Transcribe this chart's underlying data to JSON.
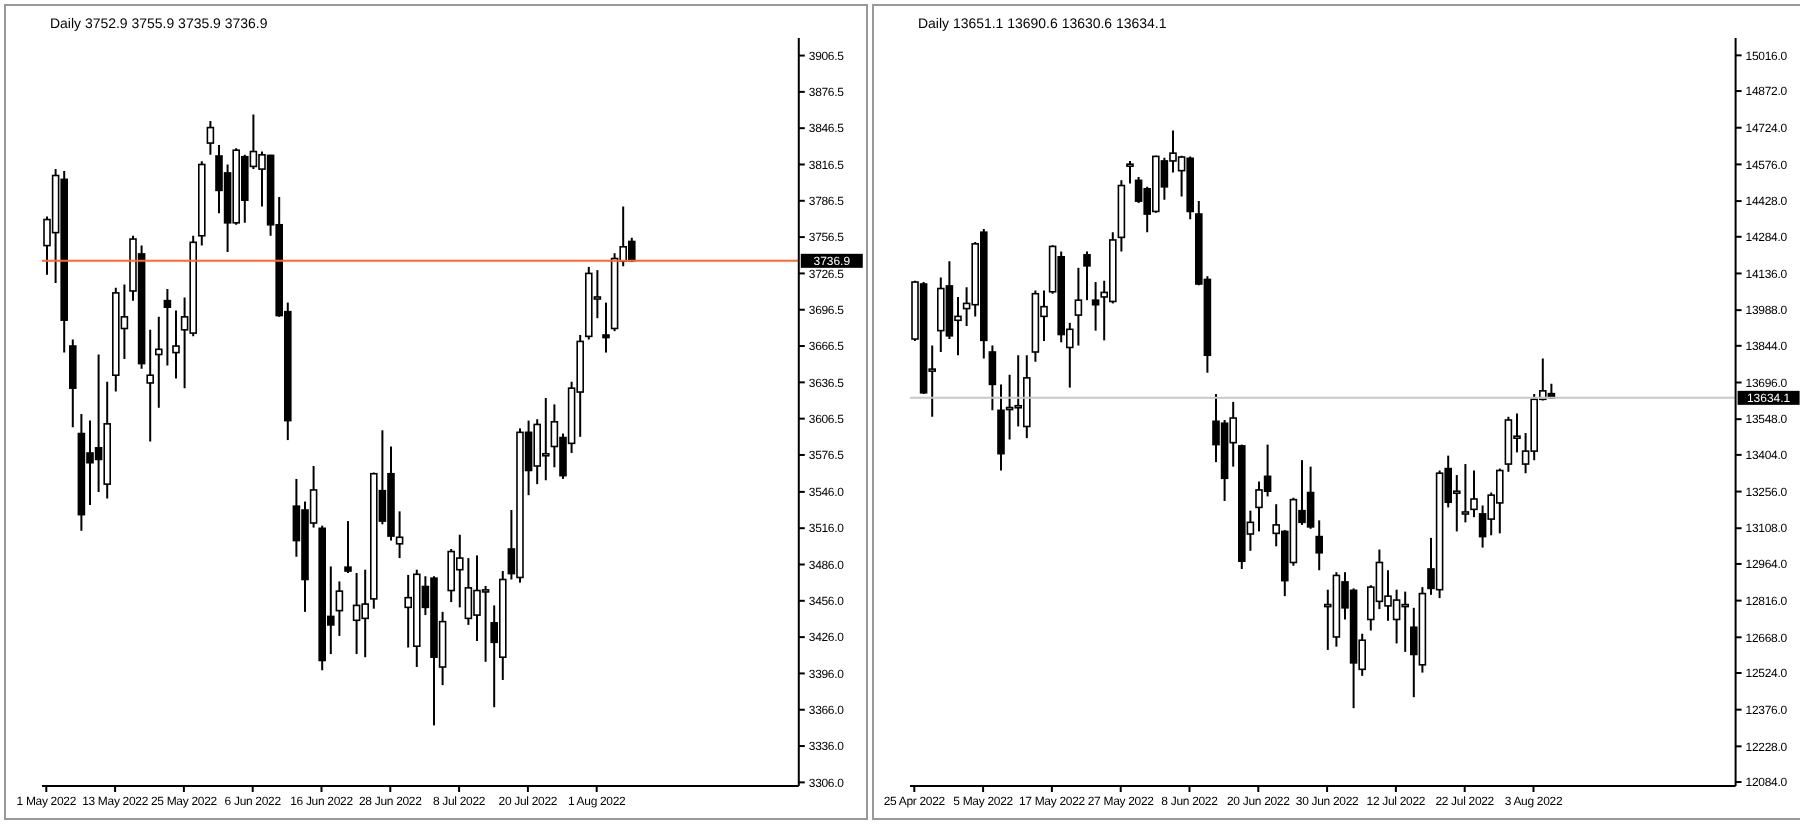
{
  "chart_data": [
    {
      "type": "candlestick",
      "title": "Daily 3752.9 3755.9 3735.9 3736.9",
      "categories": [
        "1 May 2022",
        null,
        null,
        null,
        null,
        null,
        null,
        null,
        "13 May 2022",
        null,
        null,
        null,
        null,
        null,
        null,
        null,
        "25 May 2022",
        null,
        null,
        null,
        null,
        null,
        null,
        null,
        "6 Jun 2022",
        null,
        null,
        null,
        null,
        null,
        null,
        null,
        "16 Jun 2022",
        null,
        null,
        null,
        null,
        null,
        null,
        null,
        "28 Jun 2022",
        null,
        null,
        null,
        null,
        null,
        null,
        null,
        "8 Jul 2022",
        null,
        null,
        null,
        null,
        null,
        null,
        null,
        "20 Jul 2022",
        null,
        null,
        null,
        null,
        null,
        null,
        null,
        "1 Aug 2022",
        null,
        null,
        null,
        null,
        null,
        null,
        null,
        null,
        null,
        null,
        null,
        null,
        null,
        null,
        null,
        null,
        null,
        null,
        null,
        null,
        null,
        null,
        null
      ],
      "color": "#000000",
      "ohlc": [
        [
          3749.5,
          3773.6,
          3725.4,
          3771.0
        ],
        [
          3760.2,
          3812.7,
          3718.5,
          3807.4
        ],
        [
          3804.2,
          3811.1,
          3661.1,
          3687.9
        ],
        [
          3666.5,
          3671.9,
          3599.5,
          3631.7
        ],
        [
          3594.2,
          3610.3,
          3513.8,
          3527.2
        ],
        [
          3578.1,
          3604.9,
          3535.2,
          3570.1
        ],
        [
          3582.4,
          3659.5,
          3546.0,
          3572.8
        ],
        [
          3552.4,
          3637.0,
          3540.6,
          3602.2
        ],
        [
          3642.4,
          3714.7,
          3629.0,
          3710.4
        ],
        [
          3681.0,
          3717.4,
          3655.8,
          3690.6
        ],
        [
          3712.0,
          3757.6,
          3704.0,
          3754.9
        ],
        [
          3742.6,
          3749.5,
          3647.8,
          3652.0
        ],
        [
          3636.0,
          3680.0,
          3587.7,
          3642.4
        ],
        [
          3659.5,
          3690.6,
          3615.6,
          3663.8
        ],
        [
          3704.0,
          3713.6,
          3650.4,
          3698.6
        ],
        [
          3661.1,
          3695.9,
          3639.7,
          3666.5
        ],
        [
          3679.9,
          3706.7,
          3631.7,
          3690.6
        ],
        [
          3677.2,
          3757.6,
          3674.5,
          3752.2
        ],
        [
          3757.6,
          3819.2,
          3749.5,
          3816.5
        ],
        [
          3834.2,
          3852.4,
          3824.5,
          3847.0
        ],
        [
          3823.5,
          3832.6,
          3776.3,
          3795.1
        ],
        [
          3809.5,
          3816.5,
          3744.2,
          3768.3
        ],
        [
          3768.3,
          3829.9,
          3766.7,
          3828.3
        ],
        [
          3822.9,
          3824.5,
          3768.3,
          3787.0
        ],
        [
          3814.9,
          3857.7,
          3812.7,
          3827.2
        ],
        [
          3812.7,
          3827.2,
          3781.7,
          3824.5
        ],
        [
          3824.0,
          3824.5,
          3757.6,
          3766.7
        ],
        [
          3766.7,
          3789.7,
          3690.6,
          3691.7
        ],
        [
          3694.9,
          3702.4,
          3588.8,
          3604.9
        ],
        [
          3534.2,
          3556.7,
          3492.4,
          3505.8
        ],
        [
          3531.0,
          3538.0,
          3446.9,
          3473.6
        ],
        [
          3520.3,
          3567.4,
          3516.5,
          3547.6
        ],
        [
          3515.9,
          3518.1,
          3398.6,
          3406.7
        ],
        [
          3443.1,
          3484.4,
          3412.0,
          3436.1
        ],
        [
          3447.9,
          3472.0,
          3427.0,
          3464.0
        ],
        [
          3483.8,
          3521.9,
          3479.0,
          3480.6
        ],
        [
          3439.9,
          3479.0,
          3412.0,
          3452.2
        ],
        [
          3441.5,
          3481.7,
          3409.4,
          3453.3
        ],
        [
          3457.6,
          3562.0,
          3449.5,
          3561.0
        ],
        [
          3547.0,
          3596.9,
          3519.2,
          3521.9
        ],
        [
          3561.0,
          3583.5,
          3505.8,
          3509.5
        ],
        [
          3503.1,
          3529.9,
          3491.3,
          3508.5
        ],
        [
          3450.6,
          3477.4,
          3417.4,
          3458.6
        ],
        [
          3418.5,
          3481.7,
          3401.3,
          3477.9
        ],
        [
          3467.8,
          3476.3,
          3444.2,
          3450.6
        ],
        [
          3474.7,
          3476.3,
          3353.1,
          3409.4
        ],
        [
          3401.3,
          3446.9,
          3386.3,
          3438.8
        ],
        [
          3464.5,
          3498.8,
          3454.9,
          3496.7
        ],
        [
          3481.7,
          3510.6,
          3450.6,
          3491.3
        ],
        [
          3441.5,
          3491.3,
          3436.1,
          3466.7
        ],
        [
          3444.2,
          3493.5,
          3422.8,
          3464.5
        ],
        [
          3464.5,
          3468.3,
          3405.6,
          3465.0
        ],
        [
          3437.8,
          3452.2,
          3368.1,
          3421.7
        ],
        [
          3409.4,
          3480.6,
          3390.6,
          3473.6
        ],
        [
          3498.8,
          3531.0,
          3473.6,
          3478.5
        ],
        [
          3475.3,
          3598.5,
          3471.0,
          3595.2
        ],
        [
          3595.2,
          3604.9,
          3543.3,
          3563.7
        ],
        [
          3567.4,
          3606.0,
          3552.4,
          3601.7
        ],
        [
          3577.0,
          3623.6,
          3555.6,
          3577.5
        ],
        [
          3583.5,
          3618.3,
          3566.3,
          3603.9
        ],
        [
          3590.9,
          3594.2,
          3556.7,
          3559.4
        ],
        [
          3586.1,
          3637.0,
          3578.1,
          3631.7
        ],
        [
          3628.5,
          3675.6,
          3591.5,
          3670.3
        ],
        [
          3674.5,
          3731.9,
          3671.9,
          3726.5
        ],
        [
          3706.7,
          3729.2,
          3689.5,
          3707.0
        ],
        [
          3675.6,
          3702.4,
          3661.1,
          3673.5
        ],
        [
          3681.0,
          3743.1,
          3678.8,
          3738.8
        ],
        [
          3736.7,
          3781.7,
          3732.4,
          3748.5
        ],
        [
          3752.9,
          3755.9,
          3735.9,
          3736.9
        ],
        null,
        null,
        null,
        null,
        null,
        null,
        null,
        null,
        null,
        null,
        null,
        null,
        null,
        null,
        null,
        null,
        null,
        null,
        null
      ],
      "ylim": [
        3303,
        3921
      ],
      "yticks": [
        3906.5,
        3876.5,
        3846.5,
        3816.5,
        3786.5,
        3756.5,
        3726.5,
        3696.5,
        3666.5,
        3636.5,
        3606.5,
        3576.5,
        {
          "value": 3546,
          "label": "3546.0"
        },
        {
          "value": 3516,
          "label": "3516.0"
        },
        {
          "value": 3486,
          "label": "3486.0"
        },
        {
          "value": 3456,
          "label": "3456.0"
        },
        {
          "value": 3426,
          "label": "3426.0"
        },
        {
          "value": 3396,
          "label": "3396.0"
        },
        {
          "value": 3366,
          "label": "3366.0"
        },
        {
          "value": 3336,
          "label": "3336.0"
        },
        {
          "value": 3306,
          "label": "3306.0"
        }
      ],
      "ref_lines": [
        {
          "axis": "y",
          "value": 3736.9,
          "label": "3736.9",
          "color": "#ff6a2a",
          "line_style": "solid"
        }
      ]
    },
    {
      "type": "candlestick",
      "title": "Daily 13651.1 13690.6 13630.6 13634.1",
      "categories": [
        "25 Apr 2022",
        null,
        null,
        null,
        null,
        null,
        null,
        null,
        "5 May 2022",
        null,
        null,
        null,
        null,
        null,
        null,
        null,
        "17 May 2022",
        null,
        null,
        null,
        null,
        null,
        null,
        null,
        "27 May 2022",
        null,
        null,
        null,
        null,
        null,
        null,
        null,
        "8 Jun 2022",
        null,
        null,
        null,
        null,
        null,
        null,
        null,
        "20 Jun 2022",
        null,
        null,
        null,
        null,
        null,
        null,
        null,
        "30 Jun 2022",
        null,
        null,
        null,
        null,
        null,
        null,
        null,
        "12 Jul 2022",
        null,
        null,
        null,
        null,
        null,
        null,
        null,
        "22 Jul 2022",
        null,
        null,
        null,
        null,
        null,
        null,
        null,
        "3 Aug 2022",
        null,
        null,
        null,
        null,
        null,
        null,
        null,
        null,
        null,
        null,
        null,
        null,
        null,
        null,
        null,
        null,
        null,
        null,
        null,
        null,
        null,
        null,
        null
      ],
      "color": "#000000",
      "ohlc": [
        [
          13871.4,
          14106.6,
          13863.5,
          14101.4
        ],
        [
          14093.5,
          14101.4,
          13649.2,
          13654.5
        ],
        [
          13748.5,
          13845.2,
          13557.8,
          13750.0
        ],
        [
          13905.3,
          14119.6,
          13819.1,
          14075.2
        ],
        [
          14085.6,
          14185.0,
          13871.4,
          13884.4
        ],
        [
          13947.1,
          14041.2,
          13806.0,
          13962.8
        ],
        [
          13994.2,
          14080.4,
          13923.6,
          14015.1
        ],
        [
          14009.9,
          14263.4,
          13962.8,
          14255.5
        ],
        [
          14302.5,
          14315.6,
          13793.0,
          13866.1
        ],
        [
          13819.1,
          13845.2,
          13583.9,
          13688.4
        ],
        [
          13583.9,
          13688.4,
          13340.9,
          13408.8
        ],
        [
          13591.7,
          13727.6,
          13466.3,
          13595.0
        ],
        [
          13600.0,
          13806.0,
          13518.6,
          13602.2
        ],
        [
          13518.6,
          13806.0,
          13471.5,
          13714.6
        ],
        [
          13819.1,
          14067.4,
          13779.9,
          14054.3
        ],
        [
          13962.8,
          14067.4,
          13863.5,
          14002.0
        ],
        [
          14062.1,
          14250.3,
          14054.3,
          14245.1
        ],
        [
          14203.2,
          14224.2,
          13858.3,
          13889.7
        ],
        [
          13837.4,
          13936.7,
          13675.4,
          13910.6
        ],
        [
          13968.0,
          14158.8,
          13845.2,
          14028.2
        ],
        [
          14211.1,
          14224.2,
          14028.2,
          14166.7
        ],
        [
          14028.2,
          14101.4,
          13905.3,
          14009.9
        ],
        [
          14041.2,
          14106.6,
          13866.1,
          14059.5
        ],
        [
          14023.0,
          14302.5,
          14015.1,
          14271.2
        ],
        [
          14281.6,
          14511.6,
          14224.2,
          14490.7
        ],
        [
          14572.0,
          14590.0,
          14498.5,
          14576.9
        ],
        [
          14511.6,
          14524.7,
          14420.1,
          14427.9
        ],
        [
          14477.6,
          14485.5,
          14302.5,
          14375.7
        ],
        [
          14386.2,
          14610.9,
          14380.9,
          14608.3
        ],
        [
          14590.0,
          14603.1,
          14433.2,
          14485.5
        ],
        [
          14590.0,
          14712.8,
          14543.0,
          14621.4
        ],
        [
          14550.8,
          14610.9,
          14446.3,
          14605.7
        ],
        [
          14600.5,
          14608.3,
          14354.8,
          14386.2
        ],
        [
          14375.7,
          14428.0,
          14088.3,
          14093.5
        ],
        [
          14111.8,
          14124.9,
          13735.5,
          13806.0
        ],
        [
          13539.5,
          13649.2,
          13374.8,
          13445.5
        ],
        [
          13531.7,
          13544.7,
          13218.1,
          13309.5
        ],
        [
          13453.3,
          13617.9,
          13356.6,
          13552.6
        ],
        [
          13440.2,
          13445.5,
          12943.7,
          12975.1
        ],
        [
          13084.8,
          13178.9,
          13016.9,
          13131.8
        ],
        [
          13192.0,
          13296.5,
          13095.2,
          13262.5
        ],
        [
          13317.4,
          13445.5,
          13236.4,
          13257.3
        ],
        [
          13087.4,
          13205.0,
          13035.1,
          13121.4
        ],
        [
          13095.2,
          13100.5,
          12834.0,
          12896.6
        ],
        [
          12969.8,
          13231.1,
          12956.7,
          13223.3
        ],
        [
          13178.9,
          13382.7,
          13121.4,
          13131.8
        ],
        [
          13252.0,
          13356.6,
          13105.7,
          13113.5
        ],
        [
          13074.3,
          13139.7,
          12938.5,
          13009.0
        ],
        [
          12798.0,
          12860.1,
          12617.1,
          12800.0
        ],
        [
          12669.3,
          12930.6,
          12630.1,
          12917.5
        ],
        [
          12891.4,
          12930.6,
          12739.9,
          12786.9
        ],
        [
          12857.5,
          12865.3,
          12381.9,
          12564.8
        ],
        [
          12538.7,
          12682.4,
          12512.5,
          12656.2
        ],
        [
          12739.9,
          12878.4,
          12695.4,
          12870.5
        ],
        [
          12813.0,
          13022.1,
          12781.7,
          12969.8
        ],
        [
          12794.7,
          12938.5,
          12734.6,
          12834.0
        ],
        [
          12739.9,
          12860.1,
          12643.2,
          12818.2
        ],
        [
          12798.0,
          12852.2,
          12609.2,
          12800.0
        ],
        [
          12708.5,
          12786.9,
          12426.3,
          12598.7
        ],
        [
          12556.9,
          12870.5,
          12525.6,
          12844.4
        ],
        [
          12943.7,
          13069.1,
          12839.2,
          12865.3
        ],
        [
          12860.1,
          13340.9,
          12826.1,
          13330.2
        ],
        [
          13348.7,
          13401.0,
          13192.0,
          13212.8
        ],
        [
          13255.0,
          13322.6,
          13095.2,
          13257.3
        ],
        [
          13170.0,
          13367.0,
          13131.8,
          13173.6
        ],
        [
          13184.1,
          13340.9,
          13152.7,
          13225.9
        ],
        [
          13165.8,
          13199.8,
          13029.9,
          13074.3
        ],
        [
          13144.9,
          13252.0,
          13079.6,
          13241.6
        ],
        [
          13210.2,
          13348.7,
          13087.4,
          13340.9
        ],
        [
          13367.0,
          13557.8,
          13335.7,
          13544.7
        ],
        [
          13476.0,
          13570.9,
          13414.1,
          13479.4
        ],
        [
          13367.0,
          13492.5,
          13330.2,
          13419.2
        ],
        [
          13419.2,
          13649.2,
          13382.7,
          13628.2
        ],
        [
          13628.2,
          13792.9,
          13623.1,
          13662.3
        ],
        [
          13651.1,
          13690.6,
          13630.6,
          13634.1
        ],
        null,
        null,
        null,
        null,
        null,
        null,
        null,
        null,
        null,
        null,
        null,
        null,
        null,
        null,
        null,
        null,
        null,
        null,
        null,
        null,
        null
      ],
      "ylim": [
        12068,
        15086
      ],
      "yticks": [
        {
          "value": 15016,
          "label": "15016.0"
        },
        {
          "value": 14872,
          "label": "14872.0"
        },
        {
          "value": 14724,
          "label": "14724.0"
        },
        {
          "value": 14576,
          "label": "14576.0"
        },
        {
          "value": 14428,
          "label": "14428.0"
        },
        {
          "value": 14284,
          "label": "14284.0"
        },
        {
          "value": 14136,
          "label": "14136.0"
        },
        {
          "value": 13988,
          "label": "13988.0"
        },
        {
          "value": 13844,
          "label": "13844.0"
        },
        {
          "value": 13696,
          "label": "13696.0"
        },
        {
          "value": 13548,
          "label": "13548.0"
        },
        {
          "value": 13404,
          "label": "13404.0"
        },
        {
          "value": 13256,
          "label": "13256.0"
        },
        {
          "value": 13108,
          "label": "13108.0"
        },
        {
          "value": 12964,
          "label": "12964.0"
        },
        {
          "value": 12816,
          "label": "12816.0"
        },
        {
          "value": 12668,
          "label": "12668.0"
        },
        {
          "value": 12524,
          "label": "12524.0"
        },
        {
          "value": 12376,
          "label": "12376.0"
        },
        {
          "value": 12228,
          "label": "12228.0"
        },
        {
          "value": 12084,
          "label": "12084.0"
        }
      ],
      "ref_lines": [
        {
          "axis": "y",
          "value": 13634.1,
          "label": "13634.1",
          "color": "#c8c8c8",
          "line_style": "solid"
        }
      ]
    }
  ]
}
